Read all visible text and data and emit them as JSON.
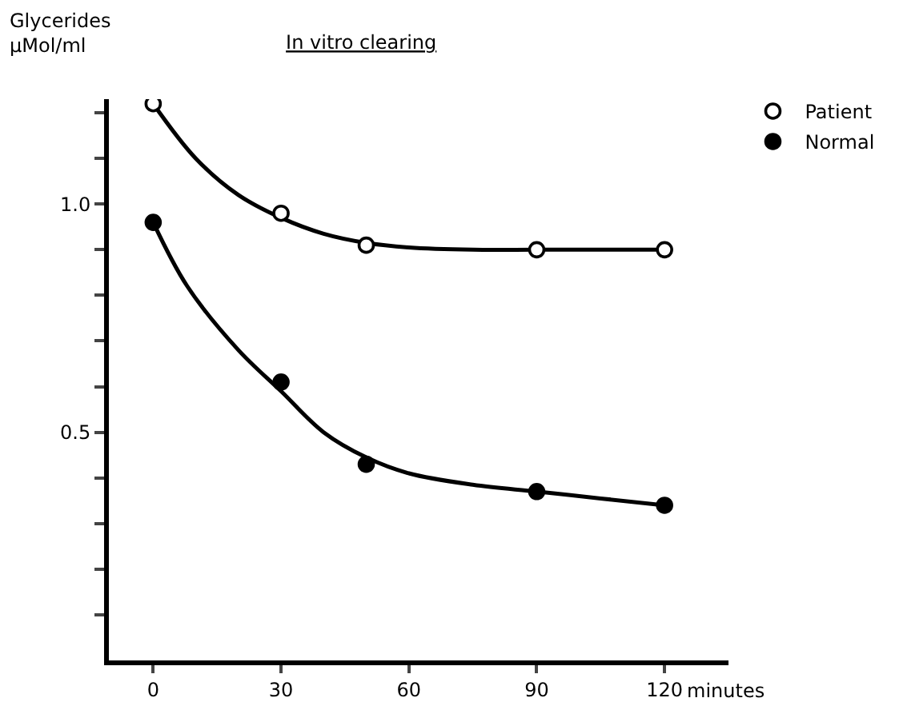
{
  "chart_data": {
    "type": "scatter",
    "title": "In vitro clearing",
    "ylabel": "Glycerides µMol/ml",
    "xlabel": "minutes",
    "xlim": [
      -10.4,
      135
    ],
    "xticks": [
      0,
      30,
      60,
      90,
      120
    ],
    "ylim": [
      0,
      1.23
    ],
    "yticks": [
      {
        "value": 0.1,
        "label": null
      },
      {
        "value": 0.2,
        "label": null
      },
      {
        "value": 0.3,
        "label": null
      },
      {
        "value": 0.4,
        "label": null
      },
      0.5,
      {
        "value": 0.6,
        "label": null
      },
      {
        "value": 0.7,
        "label": null
      },
      {
        "value": 0.8,
        "label": null
      },
      {
        "value": 0.9,
        "label": null
      },
      {
        "value": 1.0,
        "label": "1.0"
      },
      {
        "value": 1.1,
        "label": null
      },
      {
        "value": 1.2,
        "label": null
      }
    ],
    "grid": false,
    "legend": "top right",
    "marker": "circle",
    "series": [
      {
        "name": "Patient",
        "color": "#ffffff",
        "x": [
          0,
          30,
          50,
          90,
          120
        ],
        "values": [
          1.22,
          0.98,
          0.91,
          0.9,
          0.9
        ]
      },
      {
        "name": "Normal",
        "color": "#000000",
        "x": [
          0,
          30,
          50,
          90,
          120
        ],
        "values": [
          0.96,
          0.61,
          0.43,
          0.37,
          0.34
        ]
      },
      {
        "type": "line",
        "color": "#000000",
        "marker": "none",
        "line_style": "solid",
        "x": [
          0,
          10,
          20,
          30,
          40,
          50,
          60,
          75,
          90,
          105,
          120
        ],
        "values": [
          1.22,
          1.1,
          1.02,
          0.97,
          0.935,
          0.915,
          0.905,
          0.9,
          0.9,
          0.9,
          0.9
        ]
      },
      {
        "type": "line",
        "color": "#000000",
        "marker": "none",
        "line_style": "solid",
        "x": [
          0,
          8,
          20,
          30,
          40,
          50,
          60,
          75,
          90,
          105,
          120
        ],
        "values": [
          0.96,
          0.82,
          0.68,
          0.59,
          0.5,
          0.445,
          0.41,
          0.385,
          0.37,
          0.355,
          0.34
        ]
      }
    ]
  }
}
